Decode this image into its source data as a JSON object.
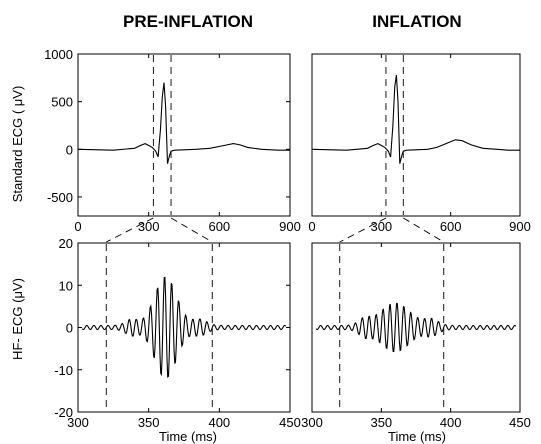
{
  "chart_data": [
    {
      "type": "line",
      "title": "PRE-INFLATION",
      "ylabel": "Standard ECG ( μV)",
      "xlim": [
        0,
        900
      ],
      "ylim": [
        -700,
        1000
      ],
      "xticks": [
        0,
        300,
        600,
        900
      ],
      "xtick_labels": [
        "0",
        "300",
        "600",
        "900"
      ],
      "yticks": [
        1000,
        500,
        0,
        -500
      ],
      "ytick_labels": [
        "1000",
        "500",
        "0",
        "-500"
      ],
      "markers_ms": [
        320,
        395
      ],
      "series": [
        {
          "x": [
            0,
            150,
            240,
            265,
            285,
            300,
            315,
            330,
            340,
            350,
            358,
            365,
            372,
            380,
            388,
            395,
            410,
            450,
            500,
            560,
            620,
            660,
            690,
            720,
            780,
            850,
            900
          ],
          "y": [
            0,
            -10,
            10,
            40,
            60,
            40,
            20,
            -20,
            -80,
            200,
            550,
            700,
            450,
            -150,
            -70,
            -20,
            -10,
            -5,
            0,
            10,
            40,
            60,
            45,
            20,
            0,
            -10,
            -10
          ]
        }
      ]
    },
    {
      "type": "line",
      "title": "INFLATION",
      "xlim": [
        0,
        900
      ],
      "ylim": [
        -700,
        1000
      ],
      "xticks": [
        0,
        300,
        600,
        900
      ],
      "xtick_labels": [
        "0",
        "300",
        "600",
        "900"
      ],
      "markers_ms": [
        320,
        395
      ],
      "series": [
        {
          "x": [
            0,
            150,
            240,
            265,
            285,
            300,
            315,
            330,
            340,
            350,
            358,
            365,
            372,
            380,
            388,
            395,
            410,
            450,
            500,
            540,
            580,
            620,
            650,
            690,
            740,
            800,
            850,
            900
          ],
          "y": [
            0,
            -10,
            10,
            40,
            60,
            40,
            20,
            -20,
            -80,
            250,
            650,
            780,
            500,
            -150,
            -70,
            -20,
            -10,
            -5,
            0,
            20,
            60,
            100,
            90,
            45,
            10,
            0,
            -10,
            -10
          ]
        }
      ]
    },
    {
      "type": "line",
      "ylabel": "HF- ECG (μV)",
      "xlabel": "Time (ms)",
      "xlim": [
        300,
        450
      ],
      "ylim": [
        -20,
        20
      ],
      "xticks": [
        300,
        350,
        400,
        450
      ],
      "xtick_labels": [
        "300",
        "350",
        "400",
        "450"
      ],
      "yticks": [
        20,
        10,
        0,
        -10,
        -20
      ],
      "ytick_labels": [
        "20",
        "10",
        "0",
        "-10",
        "-20"
      ],
      "markers_ms": [
        320,
        395
      ],
      "hf": {
        "center": 362,
        "amp": 12,
        "width": 11,
        "base_amp": 0.5,
        "freq_hz": 200
      }
    },
    {
      "type": "line",
      "xlabel": "Time (ms)",
      "xlim": [
        300,
        450
      ],
      "ylim": [
        -20,
        20
      ],
      "xticks": [
        300,
        350,
        400,
        450
      ],
      "xtick_labels": [
        "300",
        "350",
        "400",
        "450"
      ],
      "markers_ms": [
        320,
        395
      ],
      "hf": {
        "center": 360,
        "amp": 5.5,
        "width": 15,
        "base_amp": 0.5,
        "freq_hz": 200
      }
    }
  ]
}
